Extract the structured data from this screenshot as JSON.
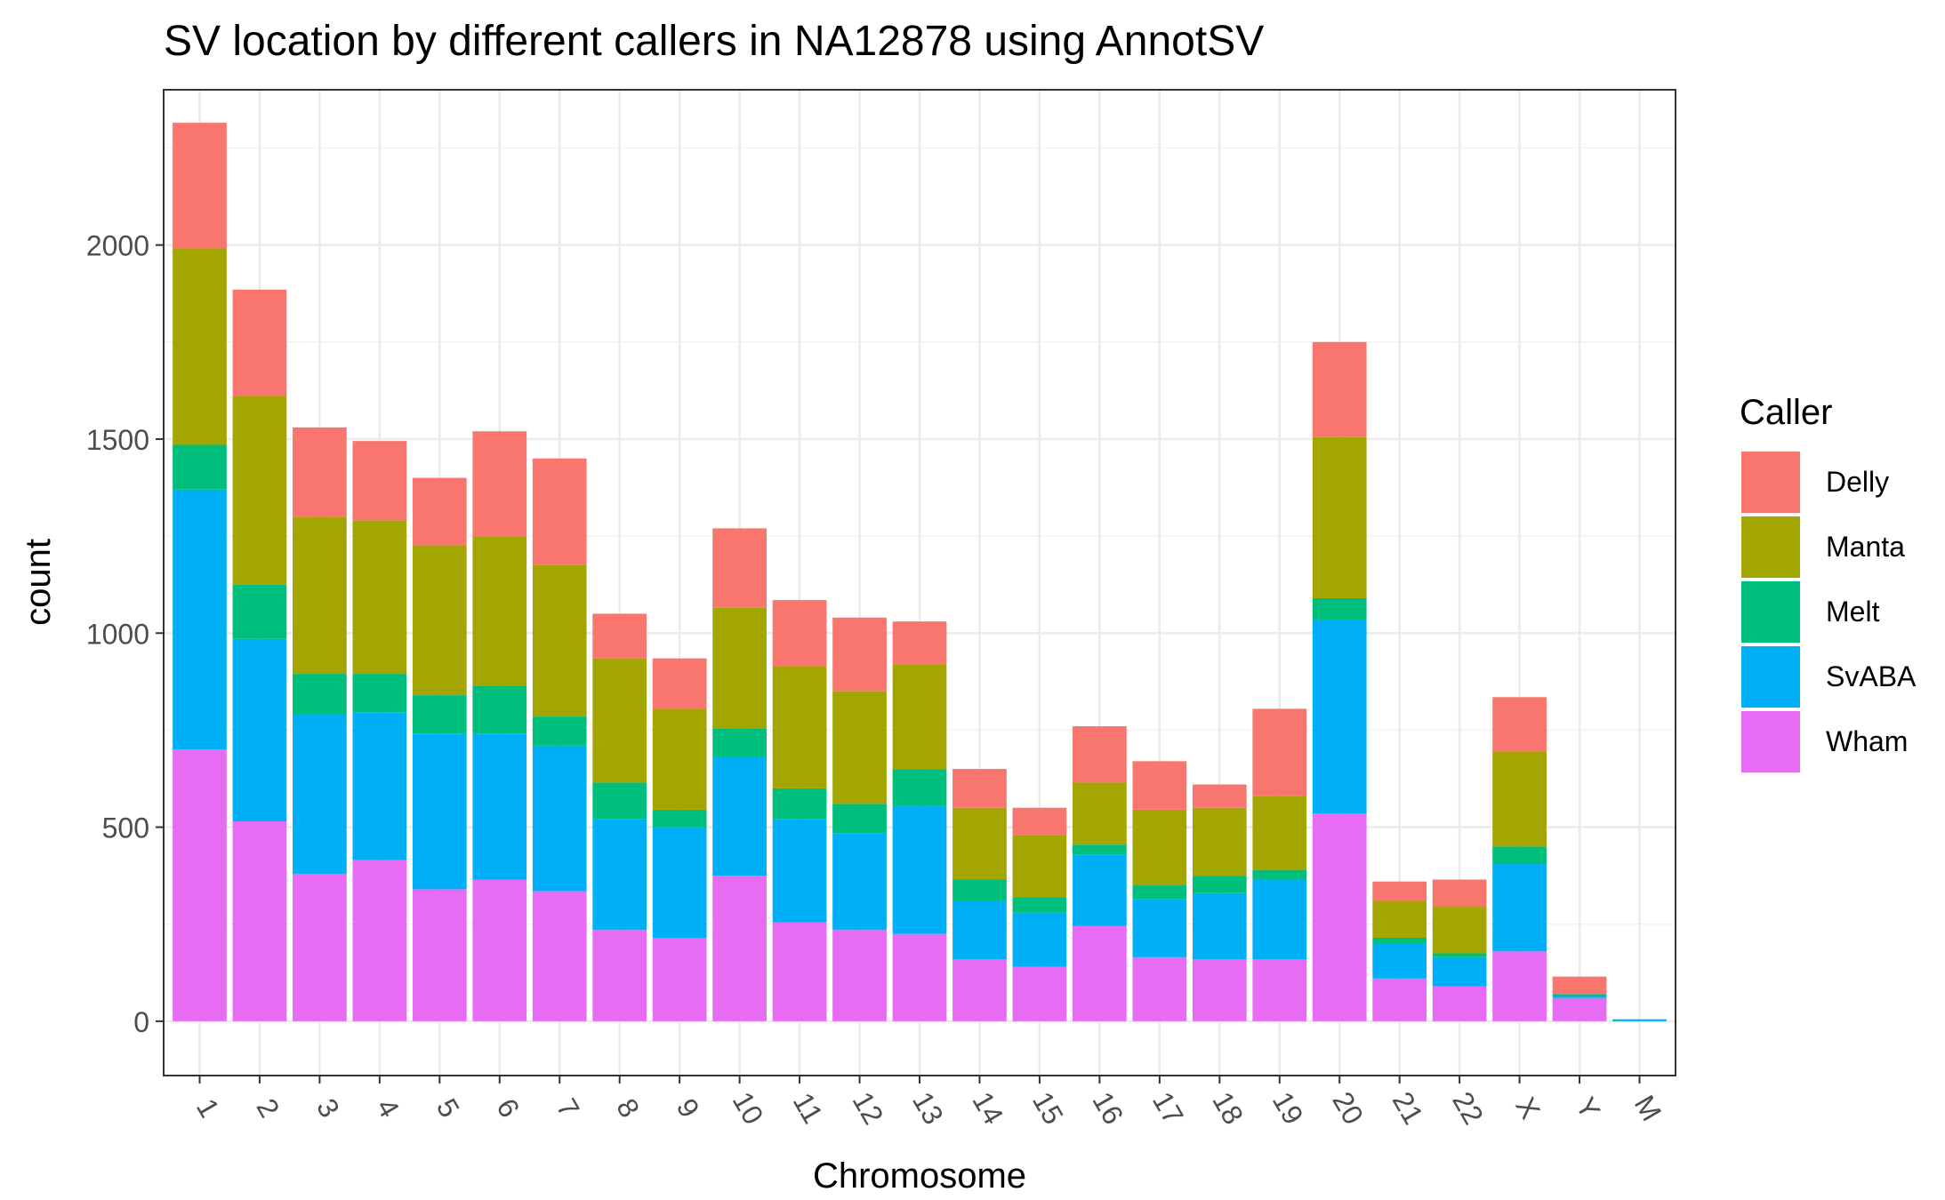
{
  "chart_data": {
    "type": "bar",
    "stacked": true,
    "title": "SV location by different callers in NA12878 using AnnotSV",
    "xlabel": "Chromosome",
    "ylabel": "count",
    "ylim": [
      -140,
      2400
    ],
    "yticks": [
      0,
      500,
      1000,
      1500,
      2000
    ],
    "grid": true,
    "legend_title": "Caller",
    "legend_position": "right",
    "categories": [
      "1",
      "2",
      "3",
      "4",
      "5",
      "6",
      "7",
      "8",
      "9",
      "10",
      "11",
      "12",
      "13",
      "14",
      "15",
      "16",
      "17",
      "18",
      "19",
      "20",
      "21",
      "22",
      "X",
      "Y",
      "M"
    ],
    "series": [
      {
        "name": "Wham",
        "color": "#E76BF3",
        "values": [
          700,
          515,
          380,
          415,
          340,
          365,
          335,
          235,
          215,
          375,
          255,
          235,
          225,
          160,
          140,
          245,
          165,
          160,
          160,
          535,
          110,
          90,
          180,
          60,
          0
        ]
      },
      {
        "name": "SvABA",
        "color": "#00B0F6",
        "values": [
          670,
          470,
          410,
          380,
          400,
          375,
          375,
          285,
          285,
          305,
          265,
          250,
          330,
          150,
          140,
          185,
          150,
          170,
          205,
          500,
          90,
          75,
          225,
          5,
          5
        ]
      },
      {
        "name": "Melt",
        "color": "#00BF7D",
        "values": [
          115,
          140,
          105,
          100,
          100,
          125,
          75,
          95,
          45,
          75,
          80,
          75,
          95,
          55,
          40,
          25,
          35,
          45,
          25,
          55,
          15,
          10,
          45,
          5,
          0
        ]
      },
      {
        "name": "Manta",
        "color": "#A3A500",
        "values": [
          505,
          485,
          405,
          395,
          385,
          385,
          390,
          320,
          260,
          310,
          315,
          290,
          270,
          185,
          160,
          160,
          195,
          175,
          190,
          415,
          95,
          120,
          245,
          0,
          0
        ]
      },
      {
        "name": "Delly",
        "color": "#F8766D",
        "values": [
          325,
          275,
          230,
          205,
          175,
          270,
          275,
          115,
          130,
          205,
          170,
          190,
          110,
          100,
          70,
          145,
          125,
          60,
          225,
          245,
          50,
          70,
          140,
          45,
          0
        ]
      }
    ]
  }
}
